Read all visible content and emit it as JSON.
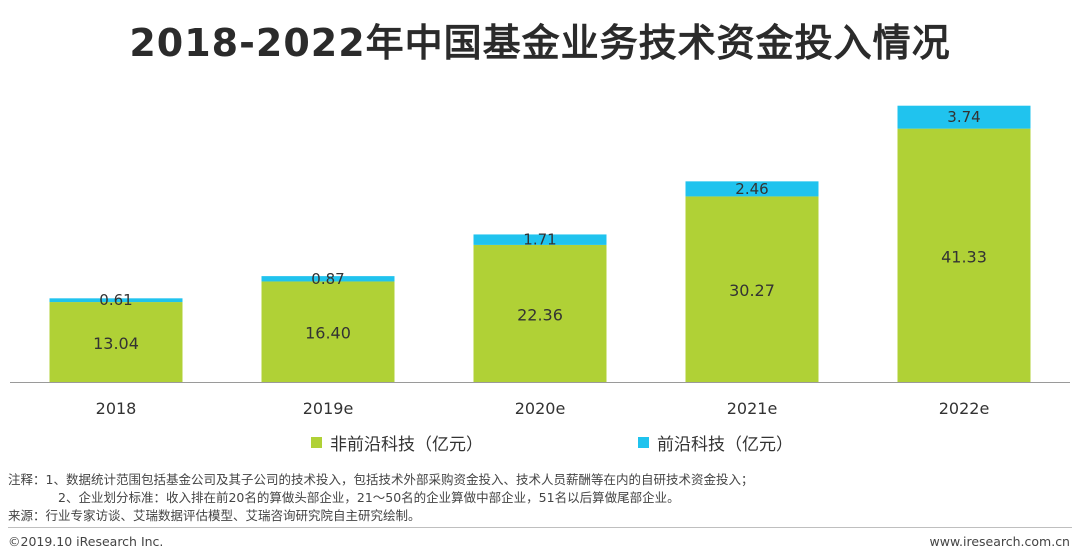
{
  "title": "2018-2022年中国基金业务技术资金投入情况",
  "chart_data": {
    "type": "bar",
    "stacked": true,
    "categories": [
      "2018",
      "2019e",
      "2020e",
      "2021e",
      "2022e"
    ],
    "series": [
      {
        "name": "非前沿科技（亿元）",
        "color": "#b0d136",
        "values": [
          13.04,
          16.4,
          22.36,
          30.27,
          41.33
        ],
        "labels": [
          "13.04",
          "16.40",
          "22.36",
          "30.27",
          "41.33"
        ]
      },
      {
        "name": "前沿科技（亿元）",
        "color": "#20c3ee",
        "values": [
          0.61,
          0.87,
          1.71,
          2.46,
          3.74
        ],
        "labels": [
          "0.61",
          "0.87",
          "1.71",
          "2.46",
          "3.74"
        ]
      }
    ],
    "ylim": [
      0,
      46
    ],
    "legend": "bottom"
  },
  "notes": {
    "line1": "注释：1、数据统计范围包括基金公司及其子公司的技术投入，包括技术外部采购资金投入、技术人员薪酬等在内的自研技术资金投入；",
    "line2": "2、企业划分标准：收入排在前20名的算做头部企业，21～50名的企业算做中部企业，51名以后算做尾部企业。",
    "line3": "来源：行业专家访谈、艾瑞数据评估模型、艾瑞咨询研究院自主研究绘制。"
  },
  "footer": {
    "left": "©2019.10 iResearch Inc.",
    "right": "www.iresearch.com.cn"
  }
}
